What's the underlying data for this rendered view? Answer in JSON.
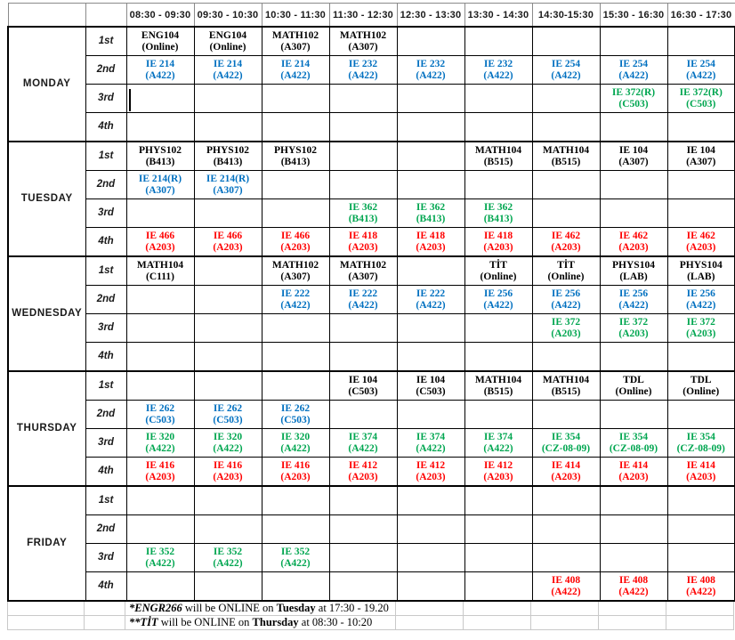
{
  "header": {
    "time_slots": [
      "08:30 - 09:30",
      "09:30 - 10:30",
      "10:30 - 11:30",
      "11:30 - 12:30",
      "12:30 - 13:30",
      "13:30 - 14:30",
      "14:30-15:30",
      "15:30 - 16:30",
      "16:30 - 17:30"
    ]
  },
  "periods": [
    "1st",
    "2nd",
    "3rd",
    "4th"
  ],
  "colors": {
    "black": "#000000",
    "blue": "#0070C0",
    "green": "#00A650",
    "red": "#FF0000"
  },
  "days": [
    {
      "name": "MONDAY",
      "rows": [
        [
          {
            "course": "ENG104",
            "room": "(Online)",
            "color": "black"
          },
          {
            "course": "ENG104",
            "room": "(Online)",
            "color": "black"
          },
          {
            "course": "MATH102",
            "room": "(A307)",
            "color": "black"
          },
          {
            "course": "MATH102",
            "room": "(A307)",
            "color": "black"
          },
          null,
          null,
          null,
          null,
          null
        ],
        [
          {
            "course": "IE 214",
            "room": "(A422)",
            "color": "blue"
          },
          {
            "course": "IE 214",
            "room": "(A422)",
            "color": "blue"
          },
          {
            "course": "IE 214",
            "room": "(A422)",
            "color": "blue"
          },
          {
            "course": "IE 232",
            "room": "(A422)",
            "color": "blue"
          },
          {
            "course": "IE 232",
            "room": "(A422)",
            "color": "blue"
          },
          {
            "course": "IE 232",
            "room": "(A422)",
            "color": "blue"
          },
          {
            "course": "IE 254",
            "room": "(A422)",
            "color": "blue"
          },
          {
            "course": "IE 254",
            "room": "(A422)",
            "color": "blue"
          },
          {
            "course": "IE 254",
            "room": "(A422)",
            "color": "blue"
          }
        ],
        [
          {
            "cursor": true
          },
          null,
          null,
          null,
          null,
          null,
          null,
          {
            "course": "IE 372(R)",
            "room": "(C503)",
            "color": "green"
          },
          {
            "course": "IE 372(R)",
            "room": "(C503)",
            "color": "green"
          }
        ],
        [
          null,
          null,
          null,
          null,
          null,
          null,
          null,
          null,
          null
        ]
      ]
    },
    {
      "name": "TUESDAY",
      "rows": [
        [
          {
            "course": "PHYS102",
            "room": "(B413)",
            "color": "black"
          },
          {
            "course": "PHYS102",
            "room": "(B413)",
            "color": "black"
          },
          {
            "course": "PHYS102",
            "room": "(B413)",
            "color": "black"
          },
          null,
          null,
          {
            "course": "MATH104",
            "room": "(B515)",
            "color": "black"
          },
          {
            "course": "MATH104",
            "room": "(B515)",
            "color": "black"
          },
          {
            "course": "IE 104",
            "room": "(A307)",
            "color": "black"
          },
          {
            "course": "IE 104",
            "room": "(A307)",
            "color": "black"
          }
        ],
        [
          {
            "course": "IE 214(R)",
            "room": "(A307)",
            "color": "blue"
          },
          {
            "course": "IE 214(R)",
            "room": "(A307)",
            "color": "blue"
          },
          null,
          null,
          null,
          null,
          null,
          null,
          null
        ],
        [
          null,
          null,
          null,
          {
            "course": "IE 362",
            "room": "(B413)",
            "color": "green"
          },
          {
            "course": "IE 362",
            "room": "(B413)",
            "color": "green"
          },
          {
            "course": "IE 362",
            "room": "(B413)",
            "color": "green"
          },
          null,
          null,
          null
        ],
        [
          {
            "course": "IE 466",
            "room": "(A203)",
            "color": "red"
          },
          {
            "course": "IE 466",
            "room": "(A203)",
            "color": "red"
          },
          {
            "course": "IE 466",
            "room": "(A203)",
            "color": "red"
          },
          {
            "course": "IE 418",
            "room": "(A203)",
            "color": "red"
          },
          {
            "course": "IE 418",
            "room": "(A203)",
            "color": "red"
          },
          {
            "course": "IE 418",
            "room": "(A203)",
            "color": "red"
          },
          {
            "course": "IE 462",
            "room": "(A203)",
            "color": "red"
          },
          {
            "course": "IE 462",
            "room": "(A203)",
            "color": "red"
          },
          {
            "course": "IE 462",
            "room": "(A203)",
            "color": "red"
          }
        ]
      ]
    },
    {
      "name": "WEDNESDAY",
      "rows": [
        [
          {
            "course": "MATH104",
            "room": "(C111)",
            "color": "black"
          },
          null,
          {
            "course": "MATH102",
            "room": "(A307)",
            "color": "black"
          },
          {
            "course": "MATH102",
            "room": "(A307)",
            "color": "black"
          },
          null,
          {
            "course": "TİT",
            "room": "(Online)",
            "color": "black"
          },
          {
            "course": "TİT",
            "room": "(Online)",
            "color": "black"
          },
          {
            "course": "PHYS104",
            "room": "(LAB)",
            "color": "black"
          },
          {
            "course": "PHYS104",
            "room": "(LAB)",
            "color": "black"
          }
        ],
        [
          null,
          null,
          {
            "course": "IE 222",
            "room": "(A422)",
            "color": "blue"
          },
          {
            "course": "IE 222",
            "room": "(A422)",
            "color": "blue"
          },
          {
            "course": "IE 222",
            "room": "(A422)",
            "color": "blue"
          },
          {
            "course": "IE 256",
            "room": "(A422)",
            "color": "blue"
          },
          {
            "course": "IE 256",
            "room": "(A422)",
            "color": "blue"
          },
          {
            "course": "IE 256",
            "room": "(A422)",
            "color": "blue"
          },
          {
            "course": "IE 256",
            "room": "(A422)",
            "color": "blue"
          }
        ],
        [
          null,
          null,
          null,
          null,
          null,
          null,
          {
            "course": "IE 372",
            "room": "(A203)",
            "color": "green"
          },
          {
            "course": "IE 372",
            "room": "(A203)",
            "color": "green"
          },
          {
            "course": "IE 372",
            "room": "(A203)",
            "color": "green"
          }
        ],
        [
          null,
          null,
          null,
          null,
          null,
          null,
          null,
          null,
          null
        ]
      ]
    },
    {
      "name": "THURSDAY",
      "rows": [
        [
          null,
          null,
          null,
          {
            "course": "IE 104",
            "room": "(C503)",
            "color": "black"
          },
          {
            "course": "IE 104",
            "room": "(C503)",
            "color": "black"
          },
          {
            "course": "MATH104",
            "room": "(B515)",
            "color": "black"
          },
          {
            "course": "MATH104",
            "room": "(B515)",
            "color": "black"
          },
          {
            "course": "TDL",
            "room": "(Online)",
            "color": "black"
          },
          {
            "course": "TDL",
            "room": "(Online)",
            "color": "black"
          }
        ],
        [
          {
            "course": "IE 262",
            "room": "(C503)",
            "color": "blue"
          },
          {
            "course": "IE 262",
            "room": "(C503)",
            "color": "blue"
          },
          {
            "course": "IE 262",
            "room": "(C503)",
            "color": "blue"
          },
          null,
          null,
          null,
          null,
          null,
          null
        ],
        [
          {
            "course": "IE 320",
            "room": "(A422)",
            "color": "green"
          },
          {
            "course": "IE 320",
            "room": "(A422)",
            "color": "green"
          },
          {
            "course": "IE 320",
            "room": "(A422)",
            "color": "green"
          },
          {
            "course": "IE 374",
            "room": "(A422)",
            "color": "green"
          },
          {
            "course": "IE 374",
            "room": "(A422)",
            "color": "green"
          },
          {
            "course": "IE 374",
            "room": "(A422)",
            "color": "green"
          },
          {
            "course": "IE 354",
            "room": "(CZ-08-09)",
            "color": "green"
          },
          {
            "course": "IE 354",
            "room": "(CZ-08-09)",
            "color": "green"
          },
          {
            "course": "IE 354",
            "room": "(CZ-08-09)",
            "color": "green"
          }
        ],
        [
          {
            "course": "IE 416",
            "room": "(A203)",
            "color": "red"
          },
          {
            "course": "IE 416",
            "room": "(A203)",
            "color": "red"
          },
          {
            "course": "IE 416",
            "room": "(A203)",
            "color": "red"
          },
          {
            "course": "IE 412",
            "room": "(A203)",
            "color": "red"
          },
          {
            "course": "IE 412",
            "room": "(A203)",
            "color": "red"
          },
          {
            "course": "IE 412",
            "room": "(A203)",
            "color": "red"
          },
          {
            "course": "IE 414",
            "room": "(A203)",
            "color": "red"
          },
          {
            "course": "IE 414",
            "room": "(A203)",
            "color": "red"
          },
          {
            "course": "IE 414",
            "room": "(A203)",
            "color": "red"
          }
        ]
      ]
    },
    {
      "name": "FRIDAY",
      "rows": [
        [
          null,
          null,
          null,
          null,
          null,
          null,
          null,
          null,
          null
        ],
        [
          null,
          null,
          null,
          null,
          null,
          null,
          null,
          null,
          null
        ],
        [
          {
            "course": "IE 352",
            "room": "(A422)",
            "color": "green"
          },
          {
            "course": "IE 352",
            "room": "(A422)",
            "color": "green"
          },
          {
            "course": "IE 352",
            "room": "(A422)",
            "color": "green"
          },
          null,
          null,
          null,
          null,
          null,
          null
        ],
        [
          null,
          null,
          null,
          null,
          null,
          null,
          {
            "course": "IE 408",
            "room": "(A422)",
            "color": "red"
          },
          {
            "course": "IE 408",
            "room": "(A422)",
            "color": "red"
          },
          {
            "course": "IE 408",
            "room": "(A422)",
            "color": "red"
          }
        ]
      ]
    }
  ],
  "notes": [
    {
      "lead": "*ENGR266",
      "mid": " will be ONLINE on ",
      "day": "Tuesday",
      "tail": " at 17:30 - 19.20"
    },
    {
      "lead": "**TİT",
      "mid": " will be ONLINE on ",
      "day": "Thursday",
      "tail": " at 08:30 - 10:20"
    }
  ]
}
